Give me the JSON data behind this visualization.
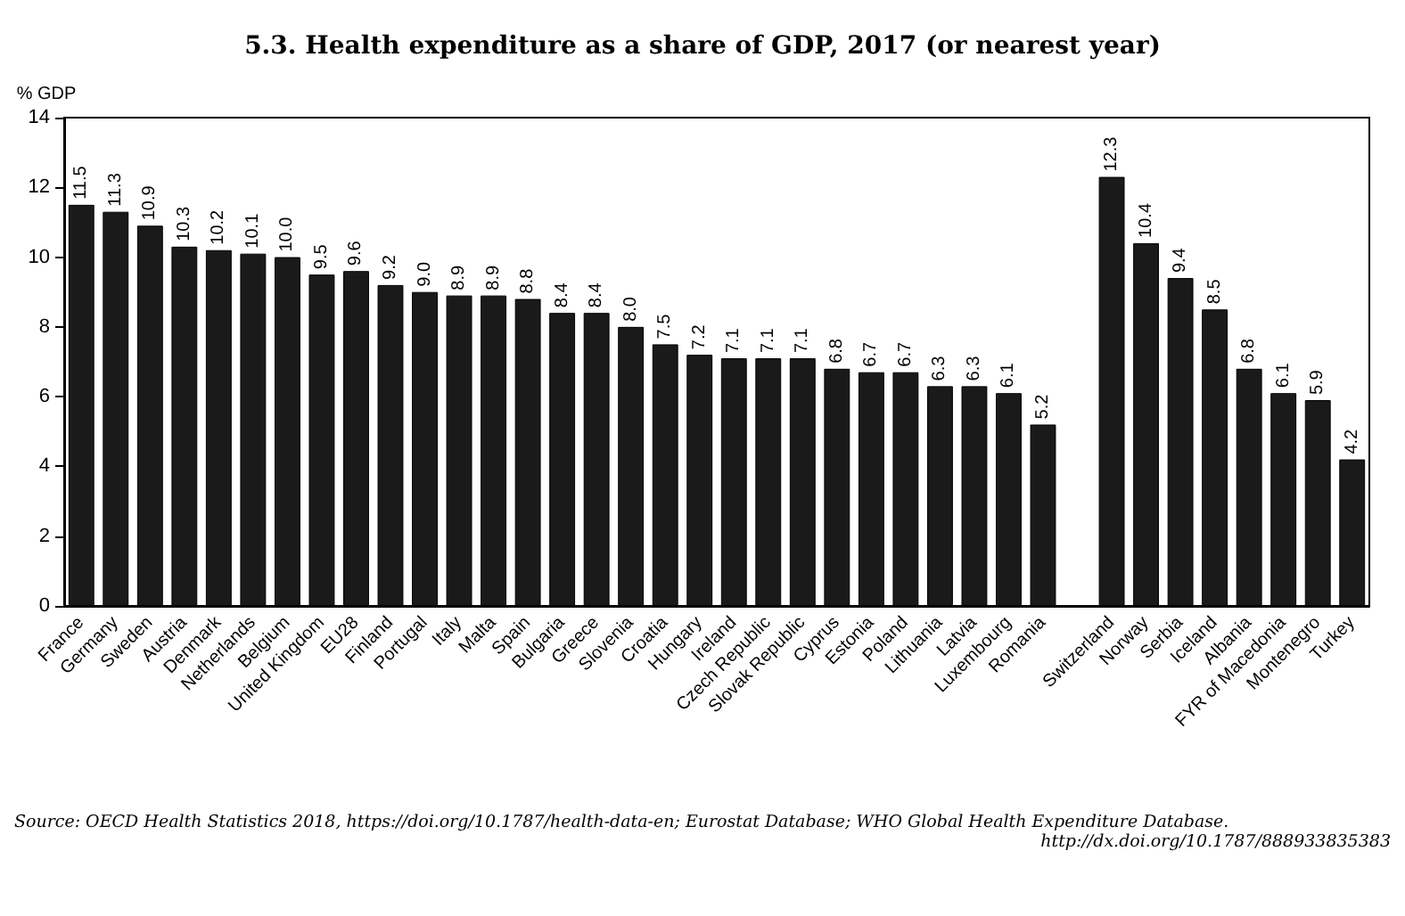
{
  "chart_data": {
    "type": "bar",
    "title": "5.3. Health expenditure as a share of GDP, 2017 (or nearest year)",
    "ylabel": "% GDP",
    "categories": [
      "France",
      "Germany",
      "Sweden",
      "Austria",
      "Denmark",
      "Netherlands",
      "Belgium",
      "United Kingdom",
      "EU28",
      "Finland",
      "Portugal",
      "Italy",
      "Malta",
      "Spain",
      "Bulgaria",
      "Greece",
      "Slovenia",
      "Croatia",
      "Hungary",
      "Ireland",
      "Czech Republic",
      "Slovak Republic",
      "Cyprus",
      "Estonia",
      "Poland",
      "Lithuania",
      "Latvia",
      "Luxembourg",
      "Romania",
      null,
      "Switzerland",
      "Norway",
      "Serbia",
      "Iceland",
      "Albania",
      "FYR of Macedonia",
      "Montenegro",
      "Turkey"
    ],
    "values": [
      11.5,
      11.3,
      10.9,
      10.3,
      10.2,
      10.1,
      10.0,
      9.5,
      9.6,
      9.2,
      9.0,
      8.9,
      8.9,
      8.8,
      8.4,
      8.4,
      8.0,
      7.5,
      7.2,
      7.1,
      7.1,
      7.1,
      6.8,
      6.7,
      6.7,
      6.3,
      6.3,
      6.1,
      5.2,
      null,
      12.3,
      10.4,
      9.4,
      8.5,
      6.8,
      6.1,
      5.9,
      4.2
    ],
    "value_labels": [
      "11.5",
      "11.3",
      "10.9",
      "10.3",
      "10.2",
      "10.1",
      "10.0",
      "9.5",
      "9.6",
      "9.2",
      "9.0",
      "8.9",
      "8.9",
      "8.8",
      "8.4",
      "8.4",
      "8.0",
      "7.5",
      "7.2",
      "7.1",
      "7.1",
      "7.1",
      "6.8",
      "6.7",
      "6.7",
      "6.3",
      "6.3",
      "6.1",
      "5.2",
      null,
      "12.3",
      "10.4",
      "9.4",
      "8.5",
      "6.8",
      "6.1",
      "5.9",
      "4.2"
    ],
    "color": "#1a1a1a",
    "ylim": [
      0,
      14
    ],
    "yticks": [
      0,
      2,
      4,
      6,
      8,
      10,
      12,
      14
    ],
    "annotations": [
      "Source: OECD Health Statistics 2018, https://doi.org/10.1787/health-data-en; Eurostat Database; WHO Global Health Expenditure Database.",
      "http://dx.doi.org/10.1787/888933835383"
    ]
  }
}
